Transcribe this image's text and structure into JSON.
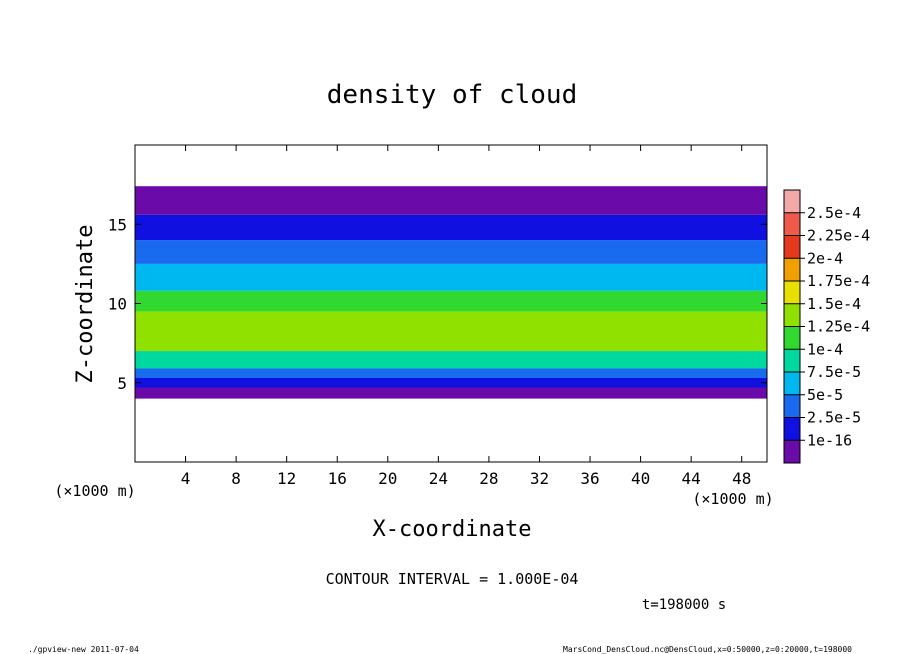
{
  "chart_data": {
    "type": "heatmap",
    "title": "density of cloud",
    "xlabel": "X-coordinate",
    "ylabel": "Z-coordinate",
    "x_unit_note": "(×1000 m)",
    "xlim": [
      0,
      50
    ],
    "ylim": [
      0,
      20
    ],
    "x_ticks": [
      "4",
      "8",
      "12",
      "16",
      "20",
      "24",
      "28",
      "32",
      "36",
      "40",
      "44",
      "48"
    ],
    "y_ticks": [
      "5",
      "10",
      "15"
    ],
    "colorbar": {
      "levels": [
        "2.5e-4",
        "2.25e-4",
        "2e-4",
        "1.75e-4",
        "1.5e-4",
        "1.25e-4",
        "1e-4",
        "7.5e-5",
        "5e-5",
        "2.5e-5",
        "1e-16"
      ],
      "colors": [
        "#f4a9a9",
        "#f05a4a",
        "#e63a20",
        "#f0a000",
        "#e8e000",
        "#90e000",
        "#30d830",
        "#00d8a0",
        "#00b8f0",
        "#1a6af0",
        "#1010e0",
        "#6a0aa8"
      ]
    },
    "bands": [
      {
        "z_bottom": 4.0,
        "z_top": 4.7,
        "level": 11
      },
      {
        "z_bottom": 4.7,
        "z_top": 5.3,
        "level": 10
      },
      {
        "z_bottom": 5.3,
        "z_top": 5.9,
        "level": 9
      },
      {
        "z_bottom": 5.9,
        "z_top": 7.0,
        "level": 7
      },
      {
        "z_bottom": 7.0,
        "z_top": 9.5,
        "level": 5
      },
      {
        "z_bottom": 9.5,
        "z_top": 10.8,
        "level": 6
      },
      {
        "z_bottom": 10.8,
        "z_top": 12.5,
        "level": 8
      },
      {
        "z_bottom": 12.5,
        "z_top": 14.0,
        "level": 9
      },
      {
        "z_bottom": 14.0,
        "z_top": 15.6,
        "level": 10
      },
      {
        "z_bottom": 15.6,
        "z_top": 17.4,
        "level": 11
      }
    ],
    "contour_interval": "CONTOUR INTERVAL = 1.000E-04",
    "time_label": "t=198000 s"
  },
  "footer": {
    "left": "./gpview-new  2011-07-04",
    "right": "MarsCond_DensCloud.nc@DensCloud,x=0:50000,z=0:20000,t=198000"
  }
}
